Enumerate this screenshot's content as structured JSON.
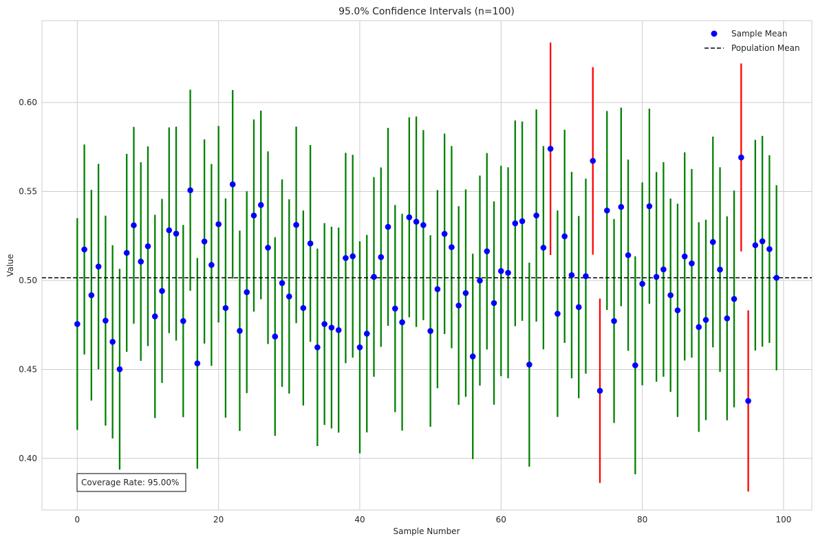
{
  "chart_data": {
    "type": "scatter",
    "title": "95.0% Confidence Intervals (n=100)",
    "xlabel": "Sample Number",
    "ylabel": "Value",
    "xlim": [
      -5,
      104
    ],
    "ylim": [
      0.371,
      0.646
    ],
    "x_ticks": [
      0,
      20,
      40,
      60,
      80,
      100
    ],
    "y_ticks": [
      0.4,
      0.45,
      0.5,
      0.55,
      0.6
    ],
    "x_tick_labels": [
      "0",
      "20",
      "40",
      "60",
      "80",
      "100"
    ],
    "y_tick_labels": [
      "0.40",
      "0.45",
      "0.50",
      "0.55",
      "0.60"
    ],
    "grid": true,
    "legend": {
      "placement": "top-right",
      "entries": [
        "Sample Mean",
        "Population Mean"
      ]
    },
    "population_mean": 0.5015,
    "annotation": "Coverage Rate: 95.00%",
    "colors": {
      "sample_mean": "#0000ff",
      "covered_interval": "#008000",
      "missed_interval": "#ff0000",
      "population_mean": "#000000",
      "grid": "#cccccc"
    },
    "series": [
      {
        "name": "Sample Mean",
        "x": [
          0,
          1,
          2,
          3,
          4,
          5,
          6,
          7,
          8,
          9,
          10,
          11,
          12,
          13,
          14,
          15,
          16,
          17,
          18,
          19,
          20,
          21,
          22,
          23,
          24,
          25,
          26,
          27,
          28,
          29,
          30,
          31,
          32,
          33,
          34,
          35,
          36,
          37,
          38,
          39,
          40,
          41,
          42,
          43,
          44,
          45,
          46,
          47,
          48,
          49,
          50,
          51,
          52,
          53,
          54,
          55,
          56,
          57,
          58,
          59,
          60,
          61,
          62,
          63,
          64,
          65,
          66,
          67,
          68,
          69,
          70,
          71,
          72,
          73,
          74,
          75,
          76,
          77,
          78,
          79,
          80,
          81,
          82,
          83,
          84,
          85,
          86,
          87,
          88,
          89,
          90,
          91,
          92,
          93,
          94,
          95,
          96,
          97,
          98,
          99
        ],
        "y": [
          0.4755,
          0.5174,
          0.4917,
          0.5078,
          0.4774,
          0.4655,
          0.4501,
          0.5155,
          0.531,
          0.5106,
          0.5192,
          0.4798,
          0.4941,
          0.5282,
          0.5263,
          0.4772,
          0.5507,
          0.4534,
          0.5219,
          0.5087,
          0.5316,
          0.4845,
          0.554,
          0.4717,
          0.4934,
          0.5365,
          0.5424,
          0.5184,
          0.4685,
          0.4985,
          0.491,
          0.5312,
          0.4845,
          0.5208,
          0.4624,
          0.4755,
          0.4735,
          0.4721,
          0.5126,
          0.5136,
          0.4624,
          0.4701,
          0.502,
          0.5131,
          0.5301,
          0.4842,
          0.4765,
          0.5355,
          0.533,
          0.5311,
          0.4716,
          0.4951,
          0.5262,
          0.5187,
          0.4859,
          0.4929,
          0.4573,
          0.4999,
          0.5164,
          0.4873,
          0.5053,
          0.5043,
          0.5321,
          0.5333,
          0.4527,
          0.5365,
          0.5184,
          0.574,
          0.4813,
          0.5248,
          0.503,
          0.485,
          0.5024,
          0.5672,
          0.438,
          0.5393,
          0.4772,
          0.5413,
          0.5142,
          0.4523,
          0.4981,
          0.5417,
          0.502,
          0.5062,
          0.4917,
          0.4832,
          0.5135,
          0.5096,
          0.4738,
          0.4778,
          0.5216,
          0.5061,
          0.4787,
          0.4896,
          0.5691,
          0.4323,
          0.5198,
          0.522,
          0.5176,
          0.5015
        ],
        "err": [
          0.0595,
          0.059,
          0.0592,
          0.0577,
          0.059,
          0.0543,
          0.0564,
          0.0556,
          0.0553,
          0.0558,
          0.0561,
          0.0571,
          0.0517,
          0.0578,
          0.0601,
          0.054,
          0.0565,
          0.0592,
          0.0574,
          0.0567,
          0.0552,
          0.0616,
          0.053,
          0.0563,
          0.0567,
          0.054,
          0.053,
          0.0541,
          0.0558,
          0.0583,
          0.0546,
          0.0552,
          0.0548,
          0.0553,
          0.0555,
          0.0567,
          0.0567,
          0.0576,
          0.0591,
          0.057,
          0.0596,
          0.0555,
          0.0561,
          0.0504,
          0.0556,
          0.0582,
          0.0609,
          0.0562,
          0.0591,
          0.0534,
          0.0538,
          0.0557,
          0.0563,
          0.0568,
          0.0558,
          0.0583,
          0.0577,
          0.059,
          0.0552,
          0.0571,
          0.0591,
          0.0593,
          0.0578,
          0.056,
          0.0573,
          0.0596,
          0.0571,
          0.0597,
          0.058,
          0.0599,
          0.058,
          0.0512,
          0.0548,
          0.0527,
          0.0518,
          0.0559,
          0.0573,
          0.0558,
          0.0537,
          0.0612,
          0.057,
          0.0548,
          0.0589,
          0.0603,
          0.0543,
          0.0599,
          0.0585,
          0.053,
          0.0589,
          0.0563,
          0.0592,
          0.0575,
          0.0573,
          0.0609,
          0.0528,
          0.0509,
          0.0592,
          0.0592,
          0.0527,
          0.052
        ],
        "covers_population_mean": [
          true,
          true,
          true,
          true,
          true,
          true,
          true,
          true,
          true,
          true,
          true,
          true,
          true,
          true,
          true,
          true,
          true,
          true,
          true,
          true,
          true,
          true,
          true,
          true,
          true,
          true,
          true,
          true,
          true,
          true,
          true,
          true,
          true,
          true,
          true,
          true,
          true,
          true,
          true,
          true,
          true,
          true,
          true,
          true,
          true,
          true,
          true,
          true,
          true,
          true,
          true,
          true,
          true,
          true,
          true,
          true,
          true,
          true,
          true,
          true,
          true,
          true,
          true,
          true,
          true,
          true,
          true,
          false,
          true,
          true,
          true,
          true,
          true,
          false,
          false,
          true,
          true,
          true,
          true,
          true,
          true,
          true,
          true,
          true,
          true,
          true,
          true,
          true,
          true,
          true,
          true,
          true,
          true,
          true,
          false,
          false,
          true,
          true,
          true,
          true
        ]
      }
    ]
  }
}
